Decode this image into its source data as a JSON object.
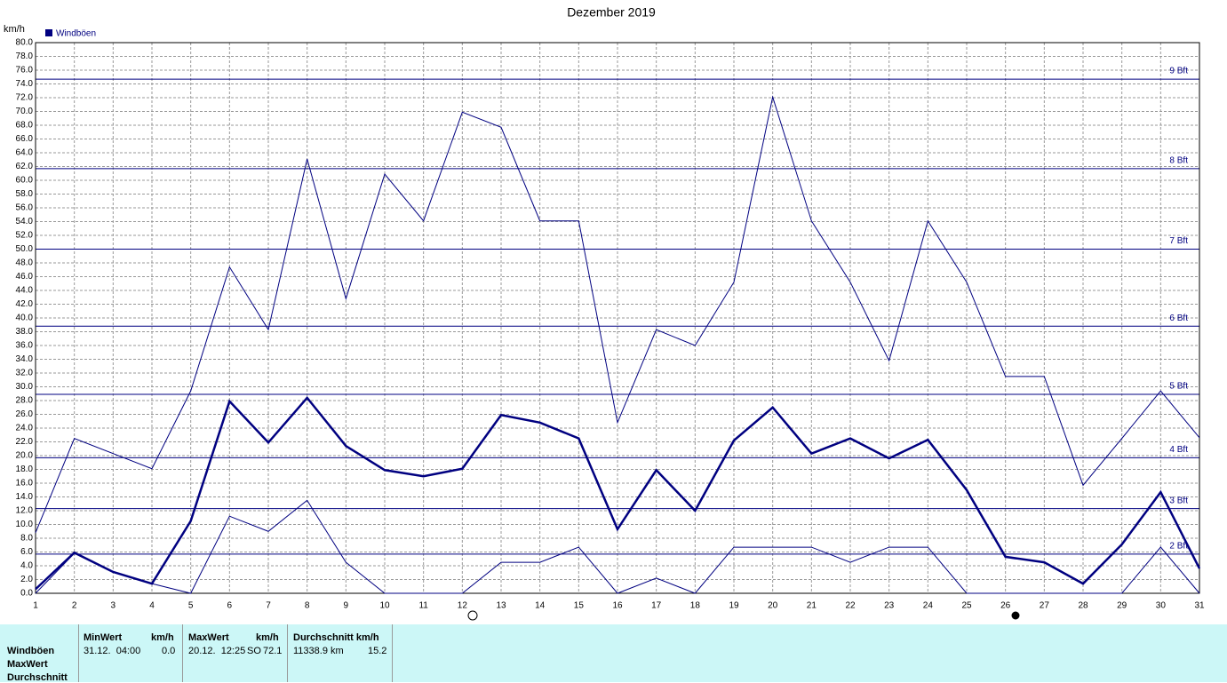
{
  "chart_data": {
    "type": "line",
    "title": "Dezember 2019",
    "y_label": "km/h",
    "x": [
      1,
      2,
      3,
      4,
      5,
      6,
      7,
      8,
      9,
      10,
      11,
      12,
      13,
      14,
      15,
      16,
      17,
      18,
      19,
      20,
      21,
      22,
      23,
      24,
      25,
      26,
      27,
      28,
      29,
      30,
      31
    ],
    "xlim": [
      1,
      31
    ],
    "xticks": [
      1,
      2,
      3,
      4,
      5,
      6,
      7,
      8,
      9,
      10,
      11,
      12,
      13,
      14,
      15,
      16,
      17,
      18,
      19,
      20,
      21,
      22,
      23,
      24,
      25,
      26,
      27,
      28,
      29,
      30,
      31
    ],
    "ylim": [
      0,
      80
    ],
    "yticks": [
      {
        "value": 0,
        "label": "0.0"
      },
      {
        "value": 2,
        "label": "2.0"
      },
      {
        "value": 4,
        "label": "4.0"
      },
      {
        "value": 6,
        "label": "6.0"
      },
      {
        "value": 8,
        "label": "8.0"
      },
      {
        "value": 10,
        "label": "10.0"
      },
      {
        "value": 12,
        "label": "12.0"
      },
      {
        "value": 14,
        "label": "14.0"
      },
      {
        "value": 16,
        "label": "16.0"
      },
      {
        "value": 18,
        "label": "18.0"
      },
      {
        "value": 20,
        "label": "20.0"
      },
      {
        "value": 22,
        "label": "22.0"
      },
      {
        "value": 24,
        "label": "24.0"
      },
      {
        "value": 26,
        "label": "26.0"
      },
      {
        "value": 28,
        "label": "28.0"
      },
      {
        "value": 30,
        "label": "30.0"
      },
      {
        "value": 32,
        "label": "32.0"
      },
      {
        "value": 34,
        "label": "34.0"
      },
      {
        "value": 36,
        "label": "36.0"
      },
      {
        "value": 38,
        "label": "38.0"
      },
      {
        "value": 40,
        "label": "40.0"
      },
      {
        "value": 42,
        "label": "42.0"
      },
      {
        "value": 44,
        "label": "44.0"
      },
      {
        "value": 46,
        "label": "46.0"
      },
      {
        "value": 48,
        "label": "48.0"
      },
      {
        "value": 50,
        "label": "50.0"
      },
      {
        "value": 52,
        "label": "52.0"
      },
      {
        "value": 54,
        "label": "54.0"
      },
      {
        "value": 56,
        "label": "56.0"
      },
      {
        "value": 58,
        "label": "58.0"
      },
      {
        "value": 60,
        "label": "60.0"
      },
      {
        "value": 62,
        "label": "62.0"
      },
      {
        "value": 64,
        "label": "64.0"
      },
      {
        "value": 66,
        "label": "66.0"
      },
      {
        "value": 68,
        "label": "68.0"
      },
      {
        "value": 70,
        "label": "70.0"
      },
      {
        "value": 72,
        "label": "72.0"
      },
      {
        "value": 74,
        "label": "74.0"
      },
      {
        "value": 76,
        "label": "76.0"
      },
      {
        "value": 78,
        "label": "78.0"
      },
      {
        "value": 80,
        "label": "80.0"
      }
    ],
    "grid": true,
    "legend": "top-left",
    "series": [
      {
        "name": "Windböen",
        "color": "#000080",
        "width": 1,
        "values": [
          8.8,
          22.5,
          20.3,
          18.1,
          29.4,
          47.4,
          38.3,
          63.1,
          42.8,
          60.9,
          54.1,
          69.9,
          67.7,
          54.1,
          54.1,
          24.8,
          38.3,
          36.0,
          45.2,
          72.1,
          54.1,
          45.2,
          33.8,
          54.1,
          45.2,
          31.5,
          31.5,
          15.7,
          22.5,
          29.4,
          22.6
        ]
      },
      {
        "color": "#000080",
        "width": 2.5,
        "values": [
          0.6,
          5.9,
          3.1,
          1.4,
          10.5,
          27.9,
          21.9,
          28.4,
          21.4,
          17.9,
          17.0,
          18.1,
          25.9,
          24.8,
          22.5,
          9.3,
          17.9,
          12.0,
          22.2,
          27.0,
          20.3,
          22.5,
          19.6,
          22.3,
          15.0,
          5.3,
          4.5,
          1.4,
          7.1,
          14.7,
          3.6
        ]
      },
      {
        "color": "#000080",
        "width": 1,
        "values": [
          0,
          5.8,
          3.1,
          1.4,
          0,
          11.2,
          9.0,
          13.5,
          4.5,
          0,
          0,
          0,
          4.5,
          4.5,
          6.7,
          0,
          2.2,
          0,
          6.7,
          6.7,
          6.7,
          4.5,
          6.7,
          6.7,
          0,
          0,
          0,
          0,
          0,
          6.7,
          0
        ]
      }
    ],
    "reference_color": "#000080",
    "reference_lines": [
      {
        "value": 5.7,
        "label": "2 Bft"
      },
      {
        "value": 12.3,
        "label": "3 Bft"
      },
      {
        "value": 19.7,
        "label": "4 Bft"
      },
      {
        "value": 28.9,
        "label": "5 Bft"
      },
      {
        "value": 38.8,
        "label": "6 Bft"
      },
      {
        "value": 50,
        "label": "7 Bft"
      },
      {
        "value": 61.7,
        "label": "8 Bft"
      },
      {
        "value": 74.7,
        "label": "9 Bft"
      }
    ]
  },
  "stats": {
    "header": [
      "MinWert",
      "km/h",
      "MaxWert",
      "km/h",
      "Durchschnitt km/h"
    ],
    "row_labels": [
      "Windböen",
      "MaxWert",
      "Durchschnitt"
    ],
    "row": [
      "31.12.  04:00",
      "0.0",
      "20.12.  12:25",
      "SO",
      "72.1",
      "11338.9 km",
      "15.2"
    ]
  }
}
